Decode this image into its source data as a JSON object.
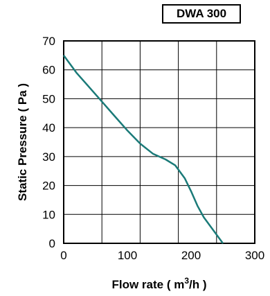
{
  "badge": "DWA 300",
  "chart_data": {
    "type": "line",
    "title": "",
    "xlabel": "Flow rate ( m³/h )",
    "xlabel_base": "Flow rate ( m",
    "xlabel_sup": "3",
    "xlabel_tail": "/h )",
    "ylabel": "Static Pressure ( Pa )",
    "xlim": [
      0,
      300
    ],
    "ylim": [
      0,
      70
    ],
    "xticks": [
      0,
      100,
      200,
      300
    ],
    "yticks": [
      0,
      10,
      20,
      30,
      40,
      50,
      60,
      70
    ],
    "grid": true,
    "series": [
      {
        "color": "#1a7a78",
        "x": [
          0,
          10,
          20,
          40,
          60,
          80,
          100,
          120,
          140,
          150,
          160,
          175,
          190,
          200,
          210,
          220,
          235,
          250
        ],
        "y": [
          65,
          62,
          59,
          54,
          49,
          44,
          39,
          34.5,
          31,
          30,
          29,
          27,
          22.5,
          18,
          13,
          9,
          4.5,
          0
        ]
      }
    ]
  }
}
